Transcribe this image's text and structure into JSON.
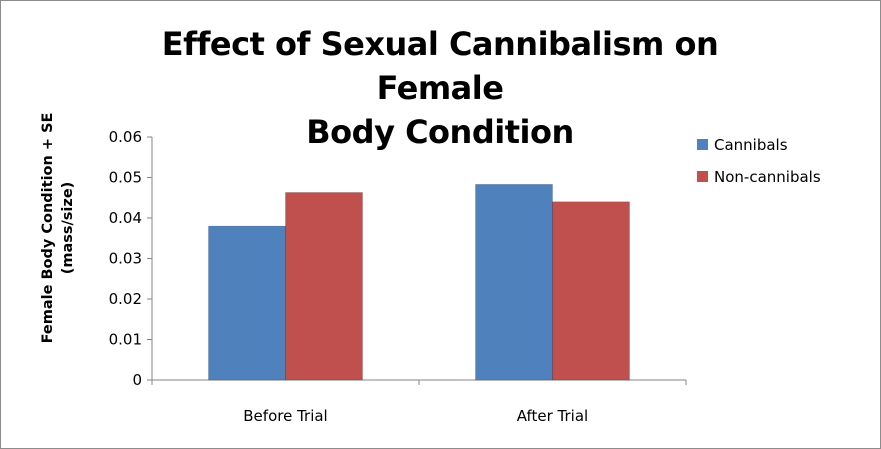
{
  "chart_data": {
    "type": "bar",
    "title_lines": [
      "Effect of Sexual Cannibalism on Female",
      "Body Condition"
    ],
    "ylabel_lines": [
      "Female Body Condition + SE",
      "(mass/size)"
    ],
    "xlabel": "",
    "categories": [
      "Before Trial",
      "After Trial"
    ],
    "series": [
      {
        "name": "Cannibals",
        "color": "#4f81bd",
        "values": [
          0.038,
          0.0483
        ]
      },
      {
        "name": "Non-cannibals",
        "color": "#c0504d",
        "values": [
          0.0463,
          0.044
        ]
      }
    ],
    "ylim": [
      0,
      0.06
    ],
    "yticks": [
      0,
      0.01,
      0.02,
      0.03,
      0.04,
      0.05,
      0.06
    ],
    "ytick_labels": [
      "0",
      "0.01",
      "0.02",
      "0.03",
      "0.04",
      "0.05",
      "0.06"
    ],
    "grid": false,
    "legend_position": "right"
  }
}
